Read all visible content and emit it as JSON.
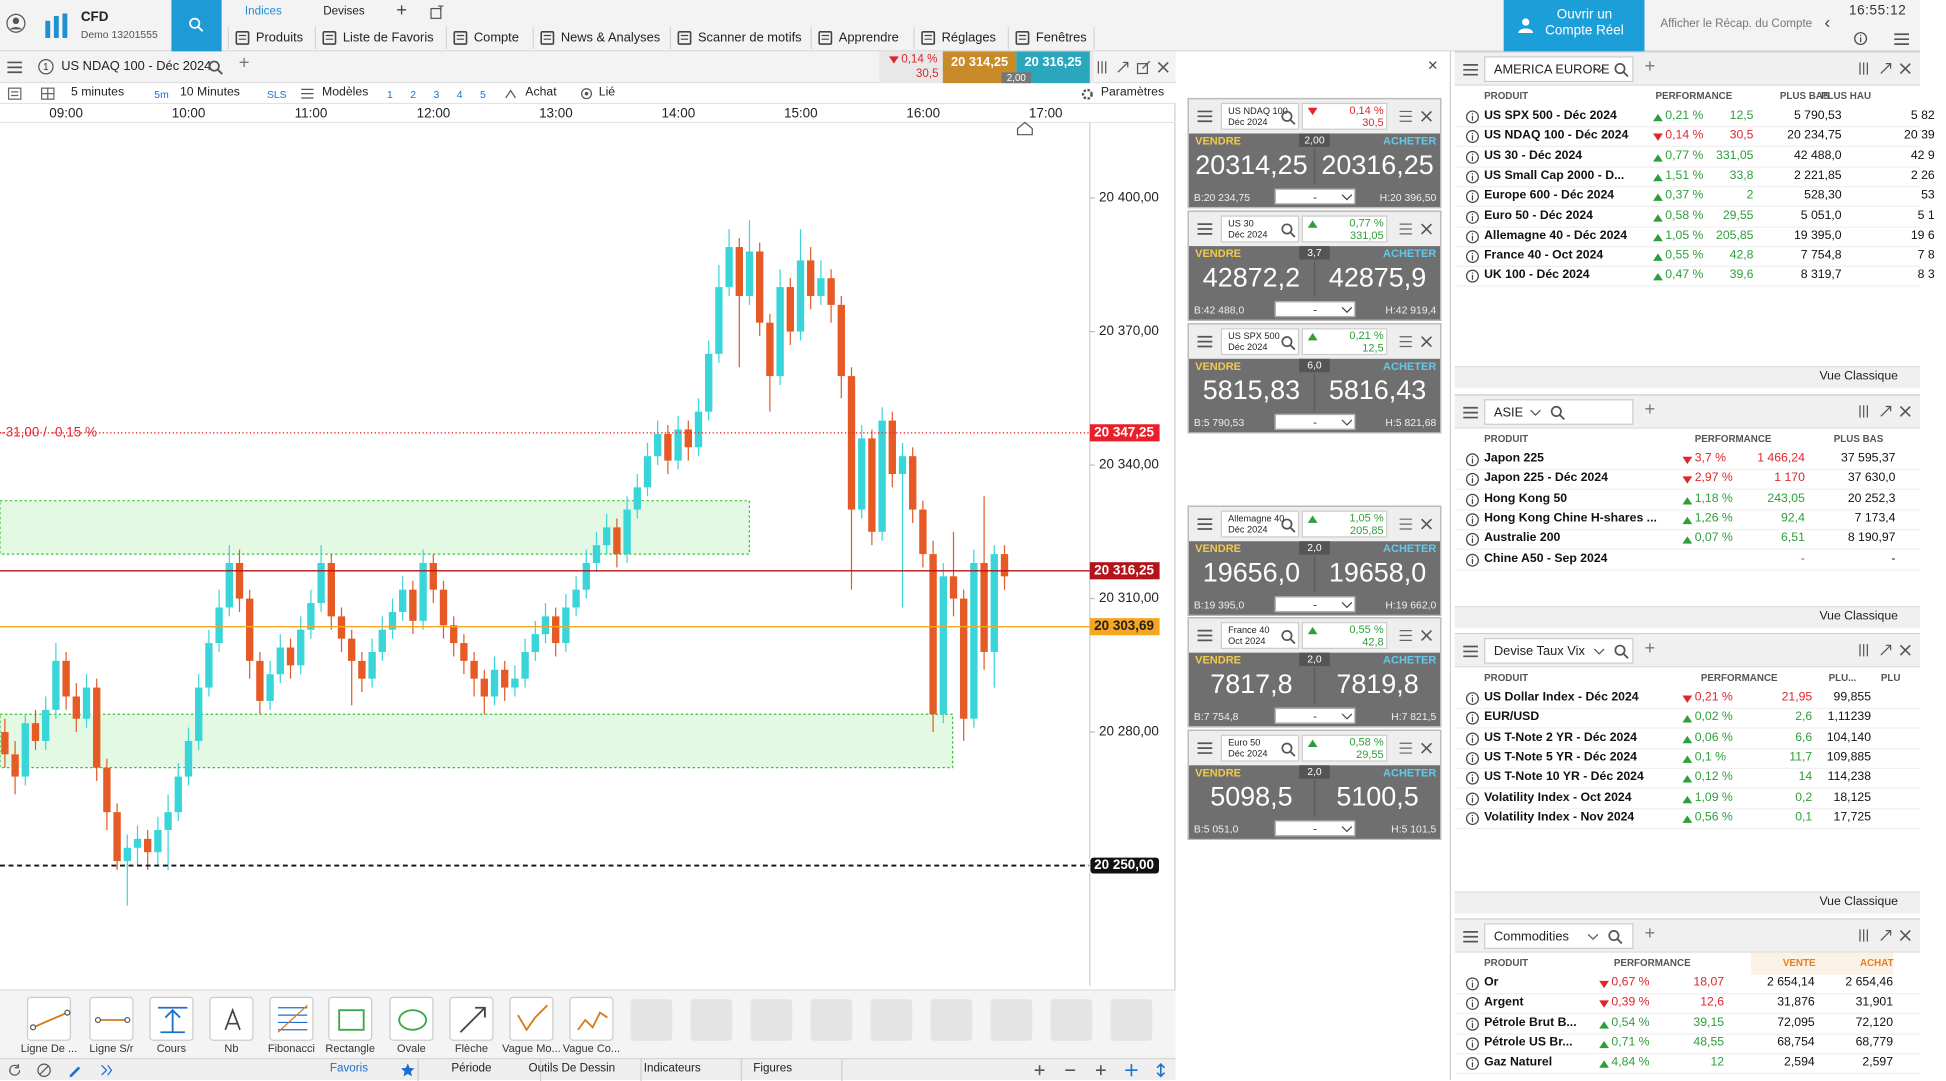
{
  "topbar": {
    "brand": "CFD",
    "account": "Demo 13201555",
    "tabs": [
      "Indices",
      "Devises"
    ],
    "menu": [
      "Produits",
      "Liste de Favoris",
      "Compte",
      "News & Analyses",
      "Scanner de motifs",
      "Apprendre",
      "Réglages",
      "Fenêtres"
    ],
    "open_account": "Ouvrir un Compte Réel",
    "summary": "Afficher le Récap. du Compte",
    "time": "16:55:12"
  },
  "chart": {
    "instrument": "US NDAQ 100 - Déc 2024",
    "trend": "down",
    "change_pct": "0,14 %",
    "change_pts": "30,5",
    "sell": "20 314,25",
    "buy": "20 316,25",
    "spread": "2,00",
    "interval": "5 minutes",
    "interval_short": "5m",
    "interval_alt": "10 Minutes",
    "sls": "SLS",
    "templates": "Modèles",
    "layouts": [
      "1",
      "2",
      "3",
      "4",
      "5"
    ],
    "buy_label": "Achat",
    "linked": "Lié",
    "settings": "Paramètres",
    "xticks": [
      "09:00",
      "10:00",
      "11:00",
      "12:00",
      "13:00",
      "14:00",
      "15:00",
      "16:00",
      "17:00"
    ],
    "ylim": [
      20417,
      20223
    ],
    "yticks": [
      {
        "value": 20400,
        "label": "20 400,00"
      },
      {
        "value": 20370,
        "label": "20 370,00"
      },
      {
        "value": 20340,
        "label": "20 340,00"
      },
      {
        "value": 20310,
        "label": "20 310,00"
      },
      {
        "value": 20280,
        "label": "20 280,00"
      }
    ],
    "levels": [
      {
        "value": 20347.25,
        "label": "20 347,25",
        "color": "#e8202a",
        "text_color": "#ffffff",
        "style": "dotted"
      },
      {
        "value": 20316.25,
        "label": "20 316,25",
        "color": "#b3141b",
        "text_color": "#ffffff",
        "style": "solid"
      },
      {
        "value": 20303.69,
        "label": "20 303,69",
        "color": "#f5a623",
        "text_color": "#222222",
        "style": "solid"
      },
      {
        "value": 20250,
        "label": "20 250,00",
        "color": "#111111",
        "text_color": "#ffffff",
        "style": "dashed"
      }
    ],
    "alert_label": "-31,00 / -0,15 %",
    "zones": [
      [
        20332,
        20320
      ],
      [
        20284,
        20272
      ]
    ],
    "zone_color": "#e3f9e3",
    "up_color": "#3ad5d8",
    "down_color": "#e55a25",
    "candles": [
      [
        20280,
        20283,
        20272,
        20275
      ],
      [
        20275,
        20278,
        20266,
        20270
      ],
      [
        20270,
        20284,
        20268,
        20282
      ],
      [
        20282,
        20285,
        20276,
        20278
      ],
      [
        20278,
        20288,
        20276,
        20285
      ],
      [
        20285,
        20300,
        20283,
        20296
      ],
      [
        20296,
        20298,
        20285,
        20288
      ],
      [
        20288,
        20291,
        20280,
        20283
      ],
      [
        20283,
        20293,
        20281,
        20290
      ],
      [
        20290,
        20292,
        20269,
        20272
      ],
      [
        20272,
        20274,
        20258,
        20262
      ],
      [
        20262,
        20264,
        20249,
        20251
      ],
      [
        20251,
        20257,
        20241,
        20254
      ],
      [
        20254,
        20259,
        20250,
        20256
      ],
      [
        20256,
        20258,
        20249,
        20253
      ],
      [
        20253,
        20261,
        20250,
        20258
      ],
      [
        20258,
        20266,
        20249,
        20262
      ],
      [
        20262,
        20273,
        20260,
        20270
      ],
      [
        20270,
        20281,
        20268,
        20278
      ],
      [
        20278,
        20293,
        20276,
        20290
      ],
      [
        20290,
        20303,
        20288,
        20300
      ],
      [
        20300,
        20312,
        20298,
        20308
      ],
      [
        20308,
        20322,
        20306,
        20318
      ],
      [
        20318,
        20321,
        20307,
        20310
      ],
      [
        20310,
        20312,
        20292,
        20296
      ],
      [
        20296,
        20298,
        20284,
        20287
      ],
      [
        20287,
        20296,
        20285,
        20293
      ],
      [
        20293,
        20302,
        20291,
        20299
      ],
      [
        20299,
        20301,
        20292,
        20295
      ],
      [
        20295,
        20306,
        20293,
        20303
      ],
      [
        20303,
        20312,
        20301,
        20309
      ],
      [
        20309,
        20322,
        20307,
        20318
      ],
      [
        20318,
        20320,
        20303,
        20306
      ],
      [
        20306,
        20308,
        20298,
        20301
      ],
      [
        20301,
        20303,
        20286,
        20296
      ],
      [
        20296,
        20298,
        20289,
        20292
      ],
      [
        20292,
        20301,
        20290,
        20298
      ],
      [
        20298,
        20306,
        20296,
        20303
      ],
      [
        20303,
        20310,
        20301,
        20307
      ],
      [
        20307,
        20315,
        20305,
        20312
      ],
      [
        20312,
        20314,
        20302,
        20305
      ],
      [
        20305,
        20321,
        20303,
        20318
      ],
      [
        20318,
        20320,
        20309,
        20312
      ],
      [
        20312,
        20314,
        20301,
        20304
      ],
      [
        20304,
        20306,
        20297,
        20300
      ],
      [
        20300,
        20302,
        20293,
        20296
      ],
      [
        20296,
        20298,
        20288,
        20292
      ],
      [
        20292,
        20294,
        20284,
        20288
      ],
      [
        20288,
        20297,
        20286,
        20294
      ],
      [
        20294,
        20296,
        20287,
        20290
      ],
      [
        20290,
        20295,
        20288,
        20292
      ],
      [
        20292,
        20301,
        20290,
        20298
      ],
      [
        20298,
        20305,
        20296,
        20302
      ],
      [
        20302,
        20309,
        20300,
        20306
      ],
      [
        20306,
        20308,
        20297,
        20300
      ],
      [
        20300,
        20311,
        20298,
        20308
      ],
      [
        20308,
        20315,
        20306,
        20312
      ],
      [
        20312,
        20321,
        20310,
        20318
      ],
      [
        20318,
        20325,
        20316,
        20322
      ],
      [
        20322,
        20329,
        20320,
        20326
      ],
      [
        20326,
        20328,
        20317,
        20320
      ],
      [
        20320,
        20333,
        20318,
        20330
      ],
      [
        20330,
        20338,
        20328,
        20335
      ],
      [
        20335,
        20345,
        20333,
        20342
      ],
      [
        20342,
        20350,
        20340,
        20347
      ],
      [
        20347,
        20349,
        20338,
        20341
      ],
      [
        20341,
        20351,
        20339,
        20348
      ],
      [
        20348,
        20350,
        20341,
        20344
      ],
      [
        20344,
        20355,
        20342,
        20352
      ],
      [
        20352,
        20368,
        20350,
        20365
      ],
      [
        20365,
        20385,
        20363,
        20380
      ],
      [
        20380,
        20393,
        20378,
        20389
      ],
      [
        20389,
        20391,
        20362,
        20378
      ],
      [
        20378,
        20395,
        20376,
        20388
      ],
      [
        20388,
        20390,
        20369,
        20372
      ],
      [
        20372,
        20374,
        20352,
        20360
      ],
      [
        20360,
        20384,
        20358,
        20380
      ],
      [
        20380,
        20382,
        20367,
        20370
      ],
      [
        20370,
        20393,
        20368,
        20386
      ],
      [
        20386,
        20389,
        20375,
        20378
      ],
      [
        20378,
        20386,
        20376,
        20382
      ],
      [
        20382,
        20384,
        20372,
        20376
      ],
      [
        20376,
        20378,
        20355,
        20360
      ],
      [
        20360,
        20362,
        20312,
        20330
      ],
      [
        20330,
        20349,
        20328,
        20346
      ],
      [
        20346,
        20348,
        20322,
        20325
      ],
      [
        20325,
        20353,
        20323,
        20350
      ],
      [
        20350,
        20352,
        20335,
        20338
      ],
      [
        20338,
        20345,
        20308,
        20342
      ],
      [
        20342,
        20344,
        20327,
        20330
      ],
      [
        20330,
        20332,
        20317,
        20320
      ],
      [
        20320,
        20323,
        20280,
        20284
      ],
      [
        20284,
        20318,
        20282,
        20315
      ],
      [
        20315,
        20325,
        20306,
        20310
      ],
      [
        20310,
        20312,
        20278,
        20283
      ],
      [
        20283,
        20321,
        20281,
        20318
      ],
      [
        20318,
        20333,
        20294,
        20298
      ],
      [
        20298,
        20322,
        20290,
        20320
      ],
      [
        20320,
        20322,
        20312,
        20315
      ]
    ]
  },
  "drawing_tools": [
    "Ligne De ...",
    "Ligne S/r",
    "Cours",
    "Nb",
    "Fibonacci",
    "Rectangle",
    "Ovale",
    "Flèche",
    "Vague Mo...",
    "Vague Co..."
  ],
  "bottom_tabs": [
    "Favoris",
    "Période",
    "Outils De Dessin",
    "Indicateurs",
    "Figures"
  ],
  "ticket_labels": {
    "sell": "VENDRE",
    "buy": "ACHETER",
    "qty": "-"
  },
  "tickets": [
    {
      "name": "US NDAQ 100",
      "expiry": "Déc 2024",
      "trend": "down",
      "change_pct": "0,14 %",
      "change_pts": "30,5",
      "spread": "2,00",
      "sell": "20314,25",
      "buy": "20316,25",
      "low": "B:20 234,75",
      "high": "H:20 396,50"
    },
    {
      "name": "US 30",
      "expiry": "Déc 2024",
      "trend": "up",
      "change_pct": "0,77 %",
      "change_pts": "331,05",
      "spread": "3,7",
      "sell": "42872,2",
      "buy": "42875,9",
      "low": "B:42 488,0",
      "high": "H:42 919,4"
    },
    {
      "name": "US SPX 500",
      "expiry": "Déc 2024",
      "trend": "up",
      "change_pct": "0,21 %",
      "change_pts": "12,5",
      "spread": "6,0",
      "sell": "5815,83",
      "buy": "5816,43",
      "low": "B:5 790,53",
      "high": "H:5 821,68"
    },
    {
      "name": "Allemagne 40",
      "expiry": "Déc 2024",
      "trend": "up",
      "change_pct": "1,05 %",
      "change_pts": "205,85",
      "spread": "2,0",
      "sell": "19656,0",
      "buy": "19658,0",
      "low": "B:19 395,0",
      "high": "H:19 662,0"
    },
    {
      "name": "France 40",
      "expiry": "Oct 2024",
      "trend": "up",
      "change_pct": "0,55 %",
      "change_pts": "42,8",
      "spread": "2,0",
      "sell": "7817,8",
      "buy": "7819,8",
      "low": "B:7 754,8",
      "high": "H:7 821,5"
    },
    {
      "name": "Euro 50",
      "expiry": "Déc 2024",
      "trend": "up",
      "change_pct": "0,58 %",
      "change_pts": "29,55",
      "spread": "2,0",
      "sell": "5098,5",
      "buy": "5100,5",
      "low": "B:5 051,0",
      "high": "H:5 101,5"
    }
  ],
  "panels": [
    {
      "title": "AMERICA EUROPE",
      "columns": [
        "PRODUIT",
        "PERFORMANCE",
        "PLUS BAS",
        "PLUS HAU"
      ],
      "footer": "Vue Classique",
      "rows": [
        {
          "name": "US SPX 500 - Déc 2024",
          "trend": "up",
          "cells": [
            "0,21 %",
            "12,5",
            "5 790,53",
            "5 82"
          ]
        },
        {
          "name": "US NDAQ 100 - Déc 2024",
          "trend": "down",
          "cells": [
            "0,14 %",
            "30,5",
            "20 234,75",
            "20 39"
          ]
        },
        {
          "name": "US 30 - Déc 2024",
          "trend": "up",
          "cells": [
            "0,77 %",
            "331,05",
            "42 488,0",
            "42 9"
          ]
        },
        {
          "name": "US Small Cap 2000 - D...",
          "trend": "up",
          "cells": [
            "1,51 %",
            "33,8",
            "2 221,85",
            "2 26"
          ]
        },
        {
          "name": "Europe 600 - Déc 2024",
          "trend": "up",
          "cells": [
            "0,37 %",
            "2",
            "528,30",
            "53"
          ]
        },
        {
          "name": "Euro 50 - Déc 2024",
          "trend": "up",
          "cells": [
            "0,58 %",
            "29,55",
            "5 051,0",
            "5 1"
          ]
        },
        {
          "name": "Allemagne 40 - Déc 2024",
          "trend": "up",
          "cells": [
            "1,05 %",
            "205,85",
            "19 395,0",
            "19 6"
          ]
        },
        {
          "name": "France 40 - Oct 2024",
          "trend": "up",
          "cells": [
            "0,55 %",
            "42,8",
            "7 754,8",
            "7 8"
          ]
        },
        {
          "name": "UK 100 - Déc 2024",
          "trend": "up",
          "cells": [
            "0,47 %",
            "39,6",
            "8 319,7",
            "8 3"
          ]
        }
      ]
    },
    {
      "title": "ASIE",
      "columns": [
        "PRODUIT",
        "PERFORMANCE",
        "PLUS BAS"
      ],
      "footer": "Vue Classique",
      "rows": [
        {
          "name": "Japon 225",
          "trend": "down",
          "cells": [
            "3,7 %",
            "1 466,24",
            "37 595,37"
          ]
        },
        {
          "name": "Japon 225 - Déc 2024",
          "trend": "down",
          "cells": [
            "2,97 %",
            "1 170",
            "37 630,0"
          ]
        },
        {
          "name": "Hong Kong 50",
          "trend": "up",
          "cells": [
            "1,18 %",
            "243,05",
            "20 252,3"
          ]
        },
        {
          "name": "Hong Kong Chine H-shares ...",
          "trend": "up",
          "cells": [
            "1,26 %",
            "92,4",
            "7 173,4"
          ]
        },
        {
          "name": "Australie 200",
          "trend": "up",
          "cells": [
            "0,07 %",
            "6,51",
            "8 190,97"
          ]
        },
        {
          "name": "Chine A50 - Sep 2024",
          "cells": [
            null,
            "-",
            "-"
          ]
        }
      ]
    },
    {
      "title": "Devise Taux Vix",
      "columns": [
        "PRODUIT",
        "PERFORMANCE",
        "PLU...",
        "PLU"
      ],
      "footer": "Vue Classique",
      "rows": [
        {
          "name": "US Dollar Index - Déc 2024",
          "trend": "down",
          "cells": [
            "0,21 %",
            "21,95",
            "99,855"
          ]
        },
        {
          "name": "EUR/USD",
          "trend": "up",
          "cells": [
            "0,02 %",
            "2,6",
            "1,11239"
          ]
        },
        {
          "name": "US T-Note 2 YR - Déc 2024",
          "trend": "up",
          "cells": [
            "0,06 %",
            "6,6",
            "104,140"
          ]
        },
        {
          "name": "US T-Note 5 YR - Déc 2024",
          "trend": "up",
          "cells": [
            "0,1 %",
            "11,7",
            "109,885"
          ]
        },
        {
          "name": "US T-Note 10 YR - Déc 2024",
          "trend": "up",
          "cells": [
            "0,12 %",
            "14",
            "114,238"
          ]
        },
        {
          "name": "Volatility Index - Oct 2024",
          "trend": "up",
          "cells": [
            "1,09 %",
            "0,2",
            "18,125"
          ]
        },
        {
          "name": "Volatility Index - Nov 2024",
          "trend": "up",
          "cells": [
            "0,56 %",
            "0,1",
            "17,725"
          ]
        }
      ]
    },
    {
      "title": "Commodities",
      "columns": [
        "PRODUIT",
        "PERFORMANCE",
        "VENTE",
        "ACHAT"
      ],
      "rows": [
        {
          "name": "Or",
          "trend": "down",
          "cells": [
            "0,67 %",
            "18,07",
            "2 654,14",
            "2 654,46"
          ]
        },
        {
          "name": "Argent",
          "trend": "down",
          "cells": [
            "0,39 %",
            "12,6",
            "31,876",
            "31,901"
          ]
        },
        {
          "name": "Pétrole Brut B...",
          "trend": "up",
          "cells": [
            "0,54 %",
            "39,15",
            "72,095",
            "72,120"
          ]
        },
        {
          "name": "Pétrole US Br...",
          "trend": "up",
          "cells": [
            "0,71 %",
            "48,55",
            "68,754",
            "68,779"
          ]
        },
        {
          "name": "Gaz Naturel",
          "trend": "up",
          "cells": [
            "4,84 %",
            "12",
            "2,594",
            "2,597"
          ]
        }
      ]
    }
  ]
}
